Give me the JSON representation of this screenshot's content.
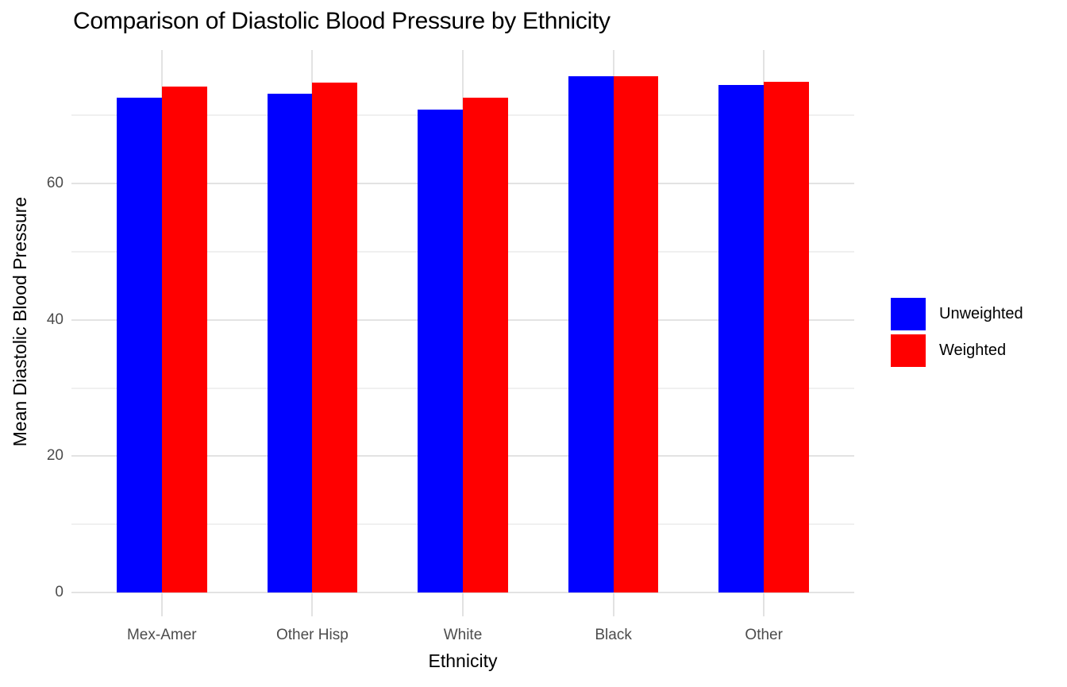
{
  "chart_data": {
    "type": "bar",
    "title": "Comparison of Diastolic Blood Pressure by Ethnicity",
    "xlabel": "Ethnicity",
    "ylabel": "Mean Diastolic Blood Pressure",
    "categories": [
      "Mex-Amer",
      "Other Hisp",
      "White",
      "Black",
      "Other"
    ],
    "series": [
      {
        "name": "Unweighted",
        "color": "#0000ff",
        "values": [
          72.6,
          73.2,
          70.9,
          75.8,
          74.5
        ]
      },
      {
        "name": "Weighted",
        "color": "#ff0000",
        "values": [
          74.2,
          74.8,
          72.6,
          75.7,
          74.9
        ]
      }
    ],
    "ylim": [
      0,
      79.6
    ],
    "yticks_major": [
      0,
      20,
      40,
      60
    ],
    "yticks_minor": [
      10,
      30,
      50,
      70
    ],
    "grid": "major and minor horizontal, vertical at category centers",
    "legend_position": "right",
    "colors": {
      "grid_major": "#e3e3e3",
      "grid_minor": "#f0f0f0",
      "tick_mark": "#e2e2e2",
      "axis_text": "#4c4c4c",
      "title_text": "#000000",
      "background": "#ffffff"
    }
  }
}
